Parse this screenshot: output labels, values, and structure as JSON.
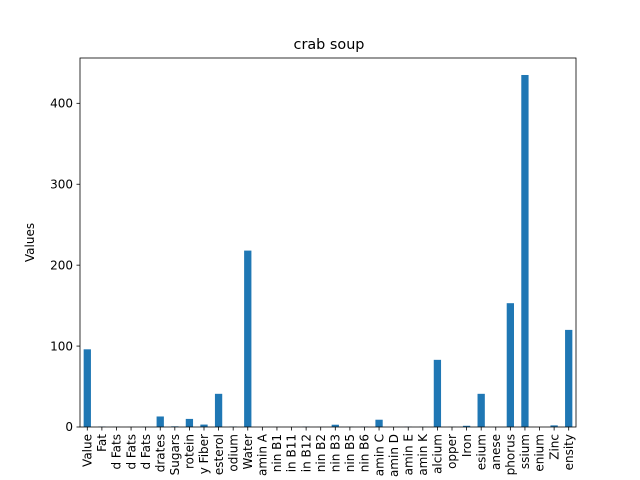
{
  "chart_data": {
    "type": "bar",
    "title": "crab soup",
    "xlabel": "",
    "ylabel": "Values",
    "ylim": [
      0,
      456
    ],
    "yticks": [
      0,
      100,
      200,
      300,
      400
    ],
    "grid": false,
    "legend": "none",
    "bar_color": "#1f77b4",
    "categories": [
      "Value",
      "Fat",
      "d Fats",
      "d Fats",
      "d Fats",
      "drates",
      "Sugars",
      "rotein",
      "y Fiber",
      "esterol",
      "odium",
      "Water",
      "amin A",
      "nin B1",
      "in B11",
      "in B12",
      "nin B2",
      "nin B3",
      "nin B5",
      "nin B6",
      "amin C",
      "amin D",
      "amin E",
      "amin K",
      "alcium",
      "opper",
      "Iron",
      "esium",
      "anese",
      "phorus",
      "ssium",
      "enium",
      "Zinc",
      "ensity"
    ],
    "values": [
      96,
      0.5,
      0.2,
      0.1,
      0.2,
      13,
      0.8,
      10,
      3,
      41,
      0.5,
      218,
      0,
      0.1,
      0,
      0.4,
      0.1,
      2.8,
      0.2,
      0.3,
      9,
      0,
      0.3,
      0.2,
      83,
      0.2,
      1.5,
      41,
      0.1,
      153,
      435,
      0,
      2,
      120
    ]
  }
}
